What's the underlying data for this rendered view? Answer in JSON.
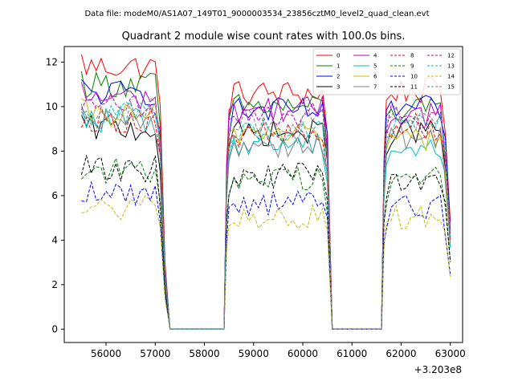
{
  "suptitle": "Data file: modeM0/AS1A07_149T01_9000003534_23856cztM0_level2_quad_clean.evt",
  "chart_data": {
    "type": "line",
    "title": "Quadrant 2 module wise count rates with 100.0s bins.",
    "xlabel": "",
    "ylabel": "",
    "x_offset_label": "+3.203e8",
    "xlim": [
      55150,
      63250
    ],
    "ylim": [
      -0.6,
      12.7
    ],
    "x_ticks": [
      56000,
      57000,
      58000,
      59000,
      60000,
      61000,
      62000,
      63000
    ],
    "x_tick_labels": [
      "56000",
      "57000",
      "58000",
      "59000",
      "60000",
      "61000",
      "62000",
      "63000"
    ],
    "y_ticks": [
      0,
      2,
      4,
      6,
      8,
      10,
      12
    ],
    "y_tick_labels": [
      "0",
      "2",
      "4",
      "6",
      "8",
      "10",
      "12"
    ],
    "legend_location": "upper right",
    "time_segments": [
      {
        "start": 55500,
        "end": 57100,
        "active": true
      },
      {
        "start": 57100,
        "end": 57300,
        "active": "ramp-down"
      },
      {
        "start": 57300,
        "end": 58400,
        "active": false
      },
      {
        "start": 58400,
        "end": 58500,
        "active": "ramp-up"
      },
      {
        "start": 58500,
        "end": 60500,
        "active": true
      },
      {
        "start": 60500,
        "end": 60600,
        "active": "ramp-down"
      },
      {
        "start": 60600,
        "end": 61600,
        "active": false
      },
      {
        "start": 61600,
        "end": 61700,
        "active": "ramp-up"
      },
      {
        "start": 61700,
        "end": 62900,
        "active": true
      },
      {
        "start": 62900,
        "end": 63000,
        "active": "ramp-down"
      }
    ],
    "bin_width": 100,
    "series": [
      {
        "name": "0",
        "color": "#ff0000",
        "dash": "solid",
        "levels": [
          11.8,
          10.6,
          10.7
        ]
      },
      {
        "name": "1",
        "color": "#008000",
        "dash": "solid",
        "levels": [
          11.0,
          10.0,
          9.8
        ]
      },
      {
        "name": "2",
        "color": "#0000ff",
        "dash": "solid",
        "levels": [
          10.6,
          9.8,
          9.9
        ]
      },
      {
        "name": "3",
        "color": "#000000",
        "dash": "solid",
        "levels": [
          9.0,
          8.8,
          8.9
        ]
      },
      {
        "name": "4",
        "color": "#bf00bf",
        "dash": "solid",
        "levels": [
          10.4,
          9.9,
          9.7
        ]
      },
      {
        "name": "5",
        "color": "#00bfbf",
        "dash": "solid",
        "levels": [
          9.4,
          8.4,
          8.1
        ]
      },
      {
        "name": "6",
        "color": "#bfbf00",
        "dash": "solid",
        "levels": [
          9.6,
          8.9,
          8.6
        ]
      },
      {
        "name": "7",
        "color": "#808080",
        "dash": "solid",
        "levels": [
          9.2,
          8.3,
          8.6
        ]
      },
      {
        "name": "8",
        "color": "#ff0000",
        "dash": "dashed",
        "levels": [
          9.4,
          8.7,
          9.1
        ]
      },
      {
        "name": "9",
        "color": "#008000",
        "dash": "dashed",
        "levels": [
          7.1,
          6.8,
          6.8
        ]
      },
      {
        "name": "10",
        "color": "#0000ff",
        "dash": "dashed",
        "levels": [
          6.1,
          5.7,
          5.5
        ]
      },
      {
        "name": "11",
        "color": "#000000",
        "dash": "dashed",
        "levels": [
          7.2,
          6.9,
          6.7
        ]
      },
      {
        "name": "12",
        "color": "#bf00bf",
        "dash": "dashed",
        "levels": [
          10.0,
          9.7,
          9.6
        ]
      },
      {
        "name": "13",
        "color": "#00bfbf",
        "dash": "dashed",
        "levels": [
          9.7,
          8.9,
          9.1
        ]
      },
      {
        "name": "14",
        "color": "#bfbf00",
        "dash": "dashed",
        "levels": [
          5.4,
          5.0,
          5.1
        ]
      },
      {
        "name": "15",
        "color": "#808080",
        "dash": "dashed",
        "levels": [
          9.8,
          9.3,
          9.5
        ]
      }
    ]
  }
}
